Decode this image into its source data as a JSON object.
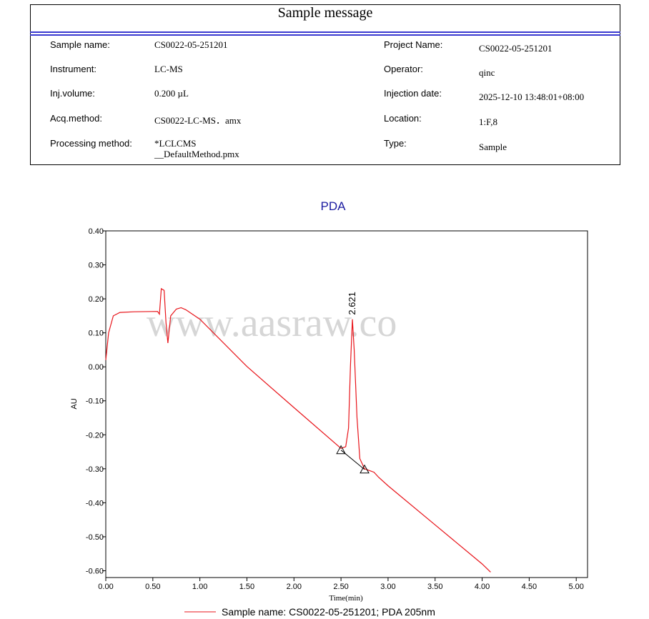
{
  "sample_message": {
    "title": "Sample message",
    "rows": [
      [
        "Sample name:",
        "CS0022-05-251201",
        "Project Name:",
        "CS0022-05-251201"
      ],
      [
        "Instrument:",
        "LC-MS",
        "Operator:",
        "qinc"
      ],
      [
        "Inj.volume:",
        "0.200 µL",
        "Injection date:",
        "2025-12-10 13:48:01+08:00"
      ],
      [
        "Acq.method:",
        "CS0022-LC-MS．amx",
        "Location:",
        "1:F,8"
      ],
      [
        "Processing method:",
        [
          "*LCLCMS",
          "__DefaultMethod.pmx"
        ],
        "Type:",
        "Sample"
      ]
    ]
  },
  "watermark": "www.aasraw.co",
  "chart_data": {
    "type": "line",
    "title": "PDA",
    "x_label": "Time(min)",
    "y_label": "AU",
    "xlim": [
      0,
      5.12
    ],
    "ylim": [
      -0.62,
      0.4
    ],
    "xticks": [
      {
        "value": 0,
        "label": "0.00"
      },
      {
        "value": 0.5,
        "label": "0.50"
      },
      {
        "value": 1,
        "label": "1.00"
      },
      {
        "value": 1.5,
        "label": "1.50"
      },
      {
        "value": 2,
        "label": "2.00"
      },
      {
        "value": 2.5,
        "label": "2.50"
      },
      {
        "value": 3,
        "label": "3.00"
      },
      {
        "value": 3.5,
        "label": "3.50"
      },
      {
        "value": 4,
        "label": "4.00"
      },
      {
        "value": 4.5,
        "label": "4.50"
      },
      {
        "value": 5,
        "label": "5.00"
      }
    ],
    "yticks": [
      {
        "value": 0.4,
        "label": "0.40"
      },
      {
        "value": 0.3,
        "label": "0.30"
      },
      {
        "value": 0.2,
        "label": "0.20"
      },
      {
        "value": 0.1,
        "label": "0.10"
      },
      {
        "value": 0,
        "label": "0.00"
      },
      {
        "value": -0.1,
        "label": "-0.10"
      },
      {
        "value": -0.2,
        "label": "-0.20"
      },
      {
        "value": -0.3,
        "label": "-0.30"
      },
      {
        "value": -0.4,
        "label": "-0.40"
      },
      {
        "value": -0.5,
        "label": "-0.50"
      },
      {
        "value": -0.6,
        "label": "-0.60"
      }
    ],
    "x": [
      0,
      0.03,
      0.08,
      0.15,
      0.3,
      0.55,
      0.57,
      0.59,
      0.62,
      0.64,
      0.66,
      0.69,
      0.75,
      0.8,
      0.85,
      1.0,
      1.5,
      2.0,
      2.5,
      2.55,
      2.58,
      2.6,
      2.621,
      2.64,
      2.67,
      2.7,
      2.75,
      2.85,
      2.9,
      3.0,
      3.5,
      4.0,
      4.09
    ],
    "series": [
      {
        "name": "Sample name: CS0022-05-251201;  PDA  205nm",
        "color": "#e8141a",
        "values": [
          0.02,
          0.1,
          0.15,
          0.16,
          0.162,
          0.163,
          0.155,
          0.23,
          0.225,
          0.13,
          0.07,
          0.15,
          0.17,
          0.174,
          0.168,
          0.14,
          0.001,
          -0.12,
          -0.24,
          -0.235,
          -0.18,
          0.0,
          0.14,
          0.05,
          -0.15,
          -0.27,
          -0.3,
          -0.31,
          -0.325,
          -0.35,
          -0.465,
          -0.58,
          -0.604
        ]
      }
    ],
    "peak": 2.621,
    "baseline": {
      "x": [
        2.5,
        2.75
      ],
      "y": [
        -0.245,
        -0.302
      ]
    }
  }
}
